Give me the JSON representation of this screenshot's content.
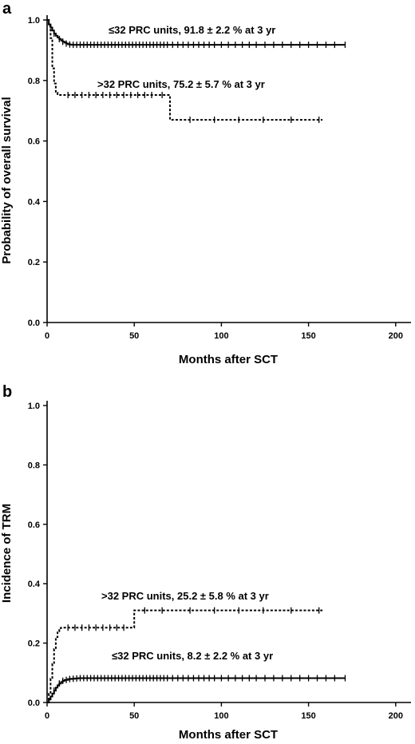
{
  "chart_data": [
    {
      "panel": "a",
      "type": "line",
      "xlabel": "Months after SCT",
      "ylabel": "Probability of overall survival",
      "xlim": [
        0,
        210
      ],
      "ylim": [
        0,
        1.0
      ],
      "xticks": [
        "0",
        "50",
        "100",
        "150",
        "200"
      ],
      "yticks": [
        "0.0",
        "0.2",
        "0.4",
        "0.6",
        "0.8",
        "1.0"
      ],
      "series": [
        {
          "name": "≤32 PRC units",
          "style": "solid",
          "x": [
            0,
            1,
            2,
            3,
            4,
            5,
            6,
            7,
            8,
            9,
            10,
            11,
            12,
            13,
            14,
            15,
            16,
            18,
            20,
            24,
            30,
            171
          ],
          "y": [
            1.0,
            0.985,
            0.975,
            0.965,
            0.955,
            0.948,
            0.942,
            0.937,
            0.932,
            0.928,
            0.925,
            0.922,
            0.92,
            0.919,
            0.918,
            0.918,
            0.918,
            0.918,
            0.918,
            0.918,
            0.918,
            0.918
          ],
          "censored_x": [
            4,
            7,
            9,
            11,
            13,
            15,
            17,
            19,
            21,
            23,
            25,
            27,
            29,
            31,
            33,
            35,
            37,
            39,
            41,
            43,
            45,
            47,
            49,
            51,
            53,
            55,
            57,
            59,
            61,
            63,
            65,
            67,
            69,
            72,
            75,
            78,
            81,
            84,
            87,
            90,
            93,
            96,
            100,
            104,
            108,
            112,
            116,
            120,
            125,
            130,
            135,
            140,
            145,
            150,
            155,
            160,
            165,
            171
          ]
        },
        {
          "name": ">32 PRC units",
          "style": "dashed",
          "x": [
            0,
            1,
            2,
            3,
            4,
            5,
            6,
            70,
            70.5,
            158
          ],
          "y": [
            1.0,
            0.98,
            0.94,
            0.84,
            0.79,
            0.76,
            0.752,
            0.752,
            0.67,
            0.67
          ],
          "censored_x": [
            12,
            16,
            20,
            24,
            28,
            32,
            36,
            40,
            44,
            48,
            52,
            56,
            60,
            66,
            82,
            96,
            110,
            124,
            140,
            156
          ]
        }
      ],
      "annotations": [
        {
          "text": "≤32 PRC units, 91.8 ± 2.2 % at 3 yr",
          "series": "≤32 PRC units"
        },
        {
          "text": ">32 PRC units, 75.2 ± 5.7 % at 3 yr",
          "series": ">32 PRC units"
        }
      ]
    },
    {
      "panel": "b",
      "type": "line",
      "xlabel": "Months after SCT",
      "ylabel": "Incidence of TRM",
      "xlim": [
        0,
        210
      ],
      "ylim": [
        0,
        1.0
      ],
      "xticks": [
        "0",
        "50",
        "100",
        "150",
        "200"
      ],
      "yticks": [
        "0.0",
        "0.2",
        "0.4",
        "0.6",
        "0.8",
        "1.0"
      ],
      "series": [
        {
          "name": ">32 PRC units",
          "style": "dashed",
          "x": [
            0,
            1,
            2,
            3,
            4,
            5,
            6,
            7,
            8,
            49,
            50,
            158
          ],
          "y": [
            0.0,
            0.03,
            0.08,
            0.13,
            0.18,
            0.22,
            0.24,
            0.25,
            0.252,
            0.252,
            0.31,
            0.31
          ],
          "censored_x": [
            12,
            16,
            20,
            24,
            28,
            32,
            36,
            40,
            44,
            56,
            66,
            82,
            96,
            110,
            124,
            140,
            156
          ]
        },
        {
          "name": "≤32 PRC units",
          "style": "solid",
          "x": [
            0,
            1,
            2,
            3,
            4,
            5,
            6,
            7,
            8,
            9,
            10,
            12,
            14,
            16,
            18,
            20,
            24,
            30,
            171
          ],
          "y": [
            0.0,
            0.01,
            0.02,
            0.03,
            0.04,
            0.05,
            0.058,
            0.064,
            0.069,
            0.073,
            0.076,
            0.079,
            0.08,
            0.081,
            0.082,
            0.082,
            0.082,
            0.082,
            0.082
          ],
          "censored_x": [
            4,
            7,
            9,
            11,
            13,
            15,
            17,
            19,
            21,
            23,
            25,
            27,
            29,
            31,
            33,
            35,
            37,
            39,
            41,
            43,
            45,
            47,
            49,
            51,
            53,
            55,
            57,
            59,
            61,
            63,
            65,
            67,
            69,
            72,
            75,
            78,
            81,
            84,
            87,
            90,
            93,
            96,
            100,
            104,
            108,
            112,
            116,
            120,
            125,
            130,
            135,
            140,
            145,
            150,
            155,
            160,
            165,
            171
          ]
        }
      ],
      "annotations": [
        {
          "text": ">32 PRC units, 25.2 ± 5.8 % at 3 yr",
          "series": ">32 PRC units"
        },
        {
          "text": "≤32 PRC units, 8.2 ± 2.2 % at 3 yr",
          "series": "≤32 PRC units"
        }
      ]
    }
  ]
}
